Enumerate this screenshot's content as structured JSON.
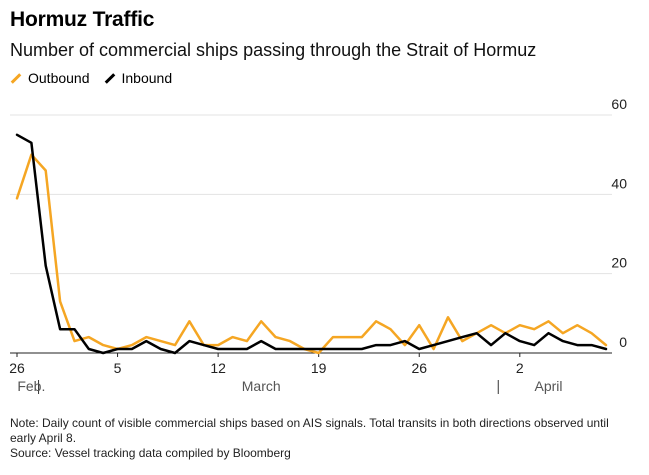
{
  "chart_data": {
    "type": "line",
    "title": "Hormuz Traffic",
    "subtitle": "Number of commercial ships passing through the Strait of Hormuz",
    "x_start": "2026-02-26",
    "x": [
      "Feb 26",
      "Feb 27",
      "Feb 28",
      "Mar 1",
      "Mar 2",
      "Mar 3",
      "Mar 4",
      "Mar 5",
      "Mar 6",
      "Mar 7",
      "Mar 8",
      "Mar 9",
      "Mar 10",
      "Mar 11",
      "Mar 12",
      "Mar 13",
      "Mar 14",
      "Mar 15",
      "Mar 16",
      "Mar 17",
      "Mar 18",
      "Mar 19",
      "Mar 20",
      "Mar 21",
      "Mar 22",
      "Mar 23",
      "Mar 24",
      "Mar 25",
      "Mar 26",
      "Mar 27",
      "Mar 28",
      "Mar 29",
      "Mar 30",
      "Mar 31",
      "Apr 1",
      "Apr 2",
      "Apr 3",
      "Apr 4",
      "Apr 5",
      "Apr 6",
      "Apr 7",
      "Apr 8"
    ],
    "series": [
      {
        "name": "Outbound",
        "color": "#f5a623",
        "values": [
          39,
          50,
          46,
          13,
          3,
          4,
          2,
          1,
          2,
          4,
          3,
          2,
          8,
          2,
          2,
          4,
          3,
          8,
          4,
          3,
          1,
          0,
          4,
          4,
          4,
          8,
          6,
          2,
          7,
          1,
          9,
          3,
          5,
          7,
          5,
          7,
          6,
          8,
          5,
          7,
          5,
          2
        ]
      },
      {
        "name": "Inbound",
        "color": "#000000",
        "values": [
          55,
          53,
          22,
          6,
          6,
          1,
          0,
          1,
          1,
          3,
          1,
          0,
          3,
          2,
          1,
          1,
          1,
          3,
          1,
          1,
          1,
          1,
          1,
          1,
          1,
          2,
          2,
          3,
          1,
          2,
          3,
          4,
          5,
          2,
          5,
          3,
          2,
          5,
          3,
          2,
          2,
          1
        ]
      }
    ],
    "x_tick_labels": [
      {
        "date": "Feb 26",
        "label": "26"
      },
      {
        "date": "Mar 5",
        "label": "5"
      },
      {
        "date": "Mar 12",
        "label": "12"
      },
      {
        "date": "Mar 19",
        "label": "19"
      },
      {
        "date": "Mar 26",
        "label": "26"
      },
      {
        "date": "Apr 2",
        "label": "2"
      }
    ],
    "month_labels": [
      {
        "date": "Feb 27",
        "label": "Feb."
      },
      {
        "date": "Mar 15",
        "label": "March"
      },
      {
        "date": "Apr 4",
        "label": "April"
      }
    ],
    "month_dividers": [
      "Feb 28",
      "Apr 1"
    ],
    "y_ticks": [
      0,
      20,
      40,
      60
    ],
    "ylim": [
      0,
      60
    ],
    "grid": true,
    "legend": "top-left"
  },
  "note": "Note: Daily count of visible commercial ships based on AIS signals. Total transits in both directions observed until early April 8.",
  "source": "Source: Vessel tracking data compiled by Bloomberg"
}
